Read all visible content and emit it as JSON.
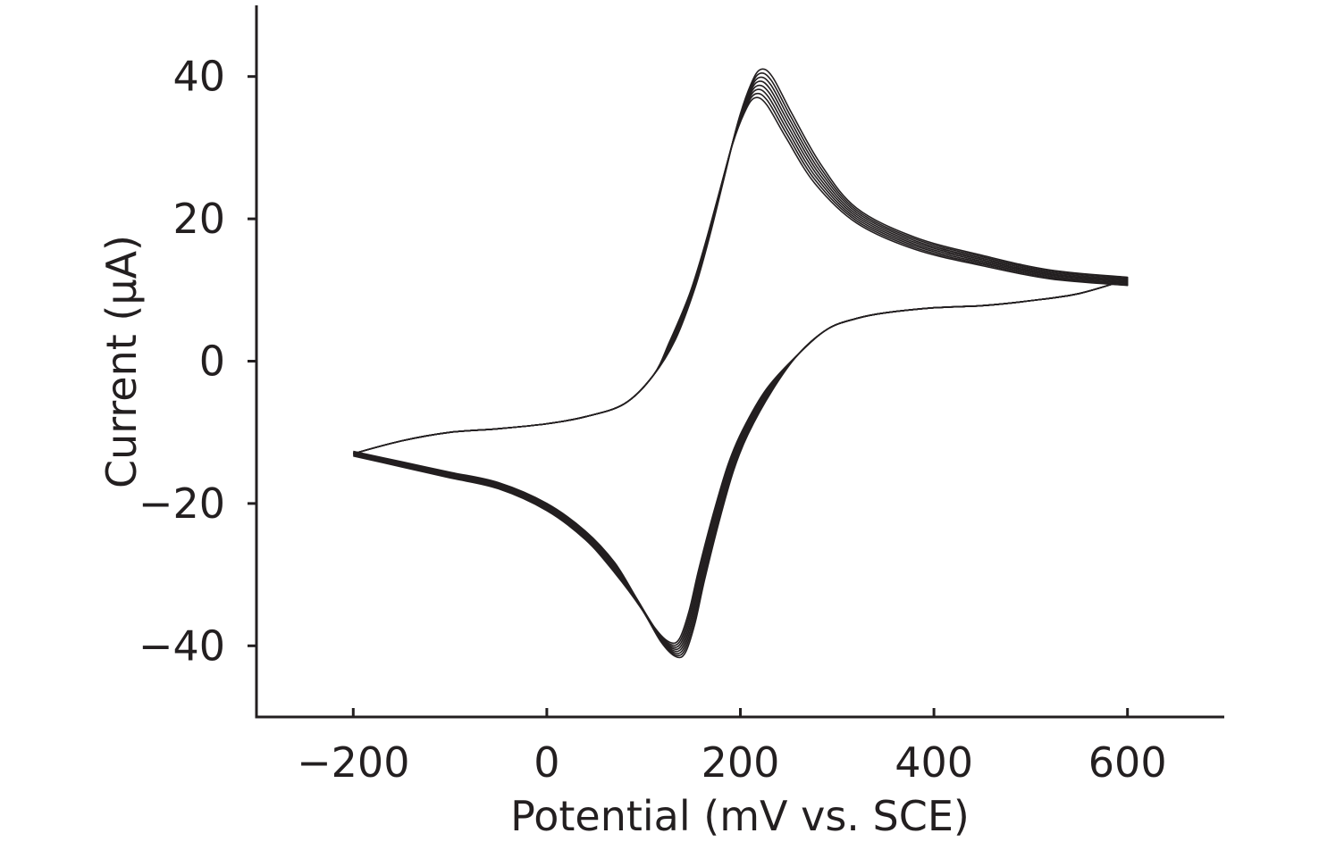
{
  "chart_data": {
    "type": "line",
    "xlabel": "Potential (mV vs. SCE)",
    "ylabel": "Current (μA)",
    "xlim": [
      -300,
      700
    ],
    "ylim": [
      -50,
      50
    ],
    "x_ticks": [
      {
        "value": -200,
        "label": "−200"
      },
      {
        "value": 0,
        "label": "0"
      },
      {
        "value": 200,
        "label": "200"
      },
      {
        "value": 400,
        "label": "400"
      },
      {
        "value": 600,
        "label": "600"
      }
    ],
    "y_ticks": [
      {
        "value": 40,
        "label": "40"
      },
      {
        "value": 20,
        "label": "20"
      },
      {
        "value": 0,
        "label": "0"
      },
      {
        "value": -20,
        "label": "−20"
      },
      {
        "value": -40,
        "label": "−40"
      }
    ],
    "grid": false,
    "legend": "none",
    "line_color": "#231f20",
    "cycles": 8,
    "cycle_peak_range": {
      "anodic_peak_current": [
        37,
        41
      ],
      "cathodic_peak_current": [
        -39.5,
        -41.5
      ]
    },
    "cycle_series": {
      "anodic": [
        {
          "x": -200,
          "y": -13
        },
        {
          "x": -150,
          "y": -11.2
        },
        {
          "x": -100,
          "y": -10
        },
        {
          "x": -50,
          "y": -9.5
        },
        {
          "x": 0,
          "y": -8.8
        },
        {
          "x": 40,
          "y": -7.8
        },
        {
          "x": 80,
          "y": -6
        },
        {
          "x": 110,
          "y": -2
        },
        {
          "x": 130,
          "y": 3
        },
        {
          "x": 150,
          "y": 10
        },
        {
          "x": 165,
          "y": 17
        },
        {
          "x": 180,
          "y": 25
        },
        {
          "x": 195,
          "y": 33
        },
        {
          "x": 208,
          "y": 38
        },
        {
          "x": 218,
          "y": 40
        },
        {
          "x": 230,
          "y": 39
        },
        {
          "x": 250,
          "y": 34
        },
        {
          "x": 280,
          "y": 27
        },
        {
          "x": 320,
          "y": 21
        },
        {
          "x": 380,
          "y": 17
        },
        {
          "x": 450,
          "y": 14.5
        },
        {
          "x": 520,
          "y": 12.5
        },
        {
          "x": 600,
          "y": 11.5
        }
      ],
      "cathodic": [
        {
          "x": 600,
          "y": 11.5
        },
        {
          "x": 550,
          "y": 9.5
        },
        {
          "x": 500,
          "y": 8.5
        },
        {
          "x": 450,
          "y": 7.8
        },
        {
          "x": 400,
          "y": 7.5
        },
        {
          "x": 350,
          "y": 6.8
        },
        {
          "x": 320,
          "y": 6
        },
        {
          "x": 290,
          "y": 4.5
        },
        {
          "x": 260,
          "y": 1
        },
        {
          "x": 230,
          "y": -4
        },
        {
          "x": 205,
          "y": -10
        },
        {
          "x": 190,
          "y": -15
        },
        {
          "x": 175,
          "y": -22
        },
        {
          "x": 160,
          "y": -30
        },
        {
          "x": 150,
          "y": -36
        },
        {
          "x": 140,
          "y": -40
        },
        {
          "x": 130,
          "y": -40.5
        },
        {
          "x": 115,
          "y": -38.5
        },
        {
          "x": 95,
          "y": -34
        },
        {
          "x": 70,
          "y": -29
        },
        {
          "x": 40,
          "y": -24.5
        },
        {
          "x": 0,
          "y": -20.5
        },
        {
          "x": -50,
          "y": -17.5
        },
        {
          "x": -100,
          "y": -16
        },
        {
          "x": -150,
          "y": -14.5
        },
        {
          "x": -200,
          "y": -13
        }
      ]
    }
  }
}
